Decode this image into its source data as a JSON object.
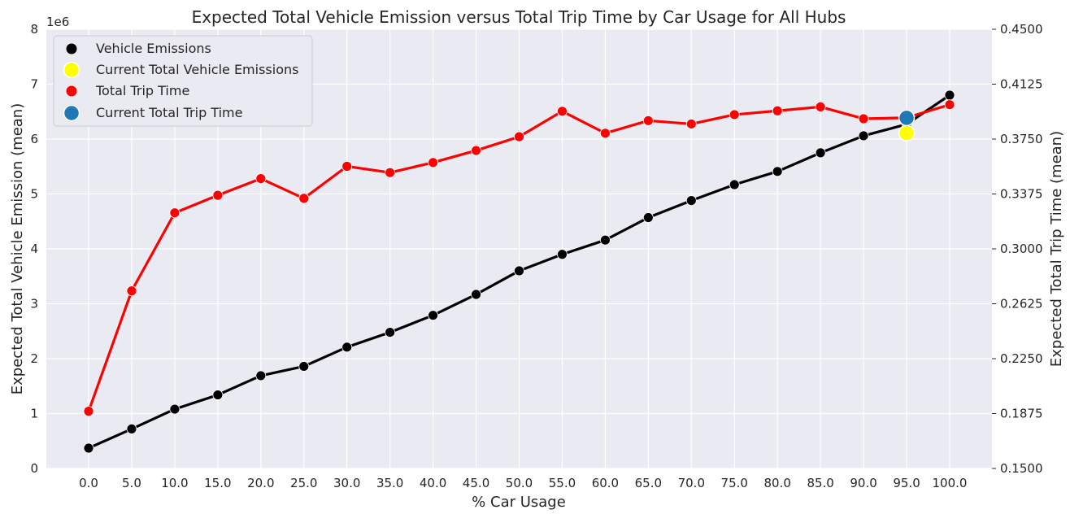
{
  "chart_data": {
    "type": "line",
    "title": "Expected Total Vehicle Emission versus Total Trip Time by Car Usage for All Hubs",
    "xlabel": "% Car Usage",
    "ylabel_left": "Expected Total Vehicle Emission (mean)",
    "ylabel_right": "Expected Total Trip Time (mean)",
    "left_axis_offset_label": "1e6",
    "x": [
      0,
      5,
      10,
      15,
      20,
      25,
      30,
      35,
      40,
      45,
      50,
      55,
      60,
      65,
      70,
      75,
      80,
      85,
      90,
      95,
      100
    ],
    "x_tick_labels": [
      "0.0",
      "5.0",
      "10.0",
      "15.0",
      "20.0",
      "25.0",
      "30.0",
      "35.0",
      "40.0",
      "45.0",
      "50.0",
      "55.0",
      "60.0",
      "65.0",
      "70.0",
      "75.0",
      "80.0",
      "85.0",
      "90.0",
      "95.0",
      "100.0"
    ],
    "ylim_left": [
      0,
      8
    ],
    "yticks_left": [
      "0",
      "1",
      "2",
      "3",
      "4",
      "5",
      "6",
      "7",
      "8"
    ],
    "ylim_right": [
      0.15,
      0.45
    ],
    "yticks_right": [
      "0.1500",
      "0.1875",
      "0.2250",
      "0.2625",
      "0.3000",
      "0.3375",
      "0.3750",
      "0.4125",
      "0.4500"
    ],
    "grid": true,
    "legend_position": "top-left",
    "series": [
      {
        "name": "Vehicle Emissions",
        "axis": "left",
        "color": "#000000",
        "values": [
          0.37,
          0.72,
          1.08,
          1.34,
          1.69,
          1.86,
          2.21,
          2.48,
          2.79,
          3.17,
          3.6,
          3.9,
          4.16,
          4.57,
          4.88,
          5.17,
          5.41,
          5.75,
          6.06,
          6.27,
          6.8
        ]
      },
      {
        "name": "Total Trip Time",
        "axis": "right",
        "color": "#ff0000",
        "values": [
          0.1891,
          0.2713,
          0.3246,
          0.3366,
          0.348,
          0.3345,
          0.3564,
          0.3521,
          0.359,
          0.3672,
          0.3766,
          0.394,
          0.379,
          0.3876,
          0.3853,
          0.3917,
          0.3943,
          0.397,
          0.3889,
          0.3896,
          0.3985
        ]
      }
    ],
    "current_points": [
      {
        "name": "Current Total Vehicle Emissions",
        "axis": "left",
        "x": 95,
        "value": 6.11,
        "color": "#ffff00"
      },
      {
        "name": "Current Total Trip Time",
        "axis": "right",
        "x": 95,
        "value": 0.3895,
        "color": "#1f77b4"
      }
    ]
  }
}
